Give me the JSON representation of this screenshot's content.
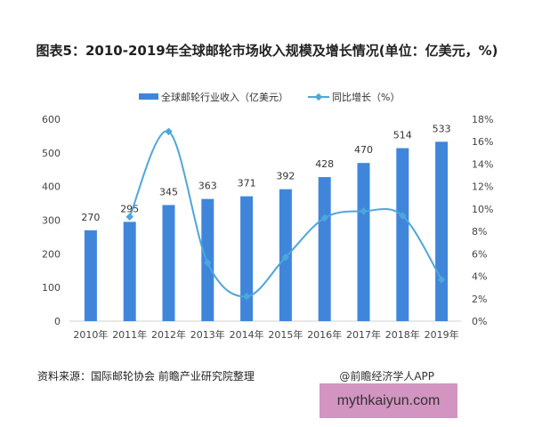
{
  "chart_data": {
    "type": "bar+line",
    "title": "图表5：2010-2019年全球邮轮市场收入规模及增长情况(单位：亿美元，%)",
    "categories": [
      "2010年",
      "2011年",
      "2012年",
      "2013年",
      "2014年",
      "2015年",
      "2016年",
      "2017年",
      "2018年",
      "2019年"
    ],
    "series": [
      {
        "name": "全球邮轮行业收入（亿美元）",
        "type": "bar",
        "axis": "left",
        "color": "#3f86db",
        "values": [
          270,
          295,
          345,
          363,
          371,
          392,
          428,
          470,
          514,
          533
        ]
      },
      {
        "name": "同比增长（%）",
        "type": "line",
        "axis": "right",
        "color": "#4ea6dc",
        "values": [
          null,
          9.3,
          16.9,
          5.2,
          2.2,
          5.7,
          9.2,
          9.8,
          9.4,
          3.7
        ]
      }
    ],
    "left_axis": {
      "min": 0,
      "max": 600,
      "ticks": [
        "0",
        "100",
        "200",
        "300",
        "400",
        "500",
        "600"
      ]
    },
    "right_axis": {
      "min": 0,
      "max": 18,
      "ticks": [
        "0%",
        "2%",
        "4%",
        "6%",
        "8%",
        "10%",
        "12%",
        "14%",
        "16%",
        "18%"
      ]
    },
    "legend": "top",
    "grid": false
  },
  "footer": {
    "source": "资料来源：国际邮轮协会 前瞻产业研究院整理",
    "credit": "@前瞻经济学人APP",
    "watermark": "mythkaiyun.com"
  }
}
